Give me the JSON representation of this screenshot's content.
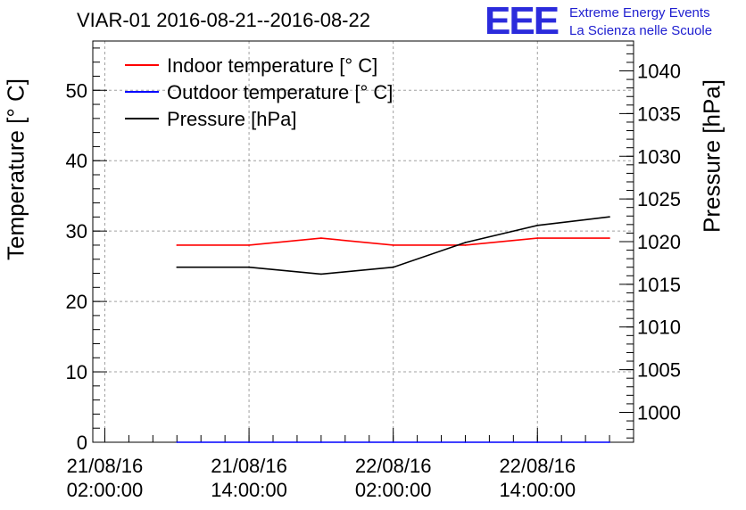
{
  "chart_data": {
    "type": "line",
    "title": "VIAR-01 2016-08-21--2016-08-22",
    "ylabel": "Temperature [° C]",
    "ylabel_right": "Pressure [hPa]",
    "xlabel": "",
    "x": [
      "21/08/16 08:00",
      "21/08/16 14:00",
      "21/08/16 20:00",
      "22/08/16 02:00",
      "22/08/16 08:00",
      "22/08/16 14:00",
      "22/08/16 20:00"
    ],
    "x_hours": [
      6,
      12,
      18,
      24,
      30,
      36,
      42
    ],
    "x_range_hours": [
      -1,
      44
    ],
    "x_ticks": [
      {
        "hours": 0,
        "label": [
          "21/08/16",
          "02:00:00"
        ]
      },
      {
        "hours": 12,
        "label": [
          "21/08/16",
          "14:00:00"
        ]
      },
      {
        "hours": 24,
        "label": [
          "22/08/16",
          "02:00:00"
        ]
      },
      {
        "hours": 36,
        "label": [
          "22/08/16",
          "14:00:00"
        ]
      }
    ],
    "ylim": [
      0,
      57
    ],
    "y_ticks": [
      0,
      10,
      20,
      30,
      40,
      50
    ],
    "ylim_right": [
      996.5,
      1043.5
    ],
    "y_ticks_right": [
      1000,
      1005,
      1010,
      1015,
      1020,
      1025,
      1030,
      1035,
      1040
    ],
    "series": [
      {
        "name": "Indoor temperature [° C]",
        "axis": "left",
        "color": "#ff0000",
        "values": [
          28,
          28,
          29,
          28,
          28,
          29,
          29
        ]
      },
      {
        "name": "Outdoor temperature [° C]",
        "axis": "left",
        "color": "#0000ff",
        "values": [
          0,
          0,
          0,
          0,
          0,
          0,
          0
        ]
      },
      {
        "name": "Pressure [hPa]",
        "axis": "right",
        "color": "#000000",
        "values": [
          1017.0,
          1017.0,
          1016.2,
          1017.0,
          1019.9,
          1021.9,
          1022.9
        ]
      }
    ],
    "grid": true,
    "legend": "top-left"
  },
  "logo": {
    "mark": "EEE",
    "line1": "Extreme Energy Events",
    "line2": "La Scienza nelle Scuole"
  }
}
